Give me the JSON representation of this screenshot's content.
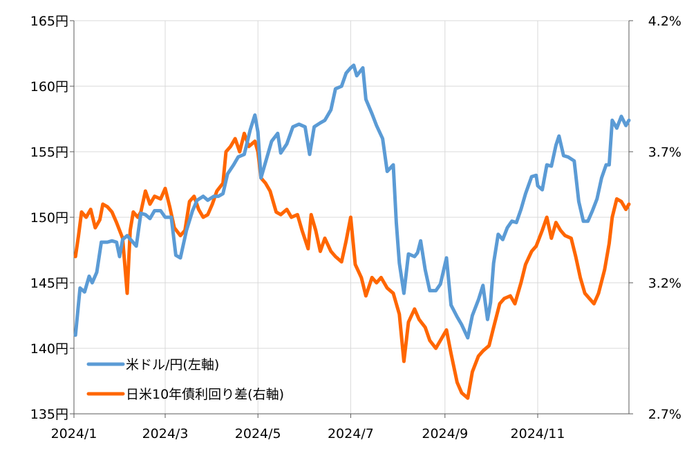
{
  "chart_data": {
    "type": "line",
    "title": "",
    "left_axis": {
      "ylim": [
        135,
        165
      ],
      "ticks": [
        165,
        160,
        155,
        150,
        145,
        140,
        135
      ],
      "tick_labels": [
        "165円",
        "160円",
        "155円",
        "150円",
        "145円",
        "140円",
        "135円"
      ]
    },
    "right_axis": {
      "ylim": [
        2.7,
        4.2
      ],
      "ticks": [
        4.2,
        3.7,
        3.2,
        2.7
      ],
      "tick_labels": [
        "4.2%",
        "3.7%",
        "3.2%",
        "2.7%"
      ]
    },
    "x_axis": {
      "start": "2024-01-01",
      "end": "2024-12-31",
      "ticks": [
        "2024-01-01",
        "2024-03-01",
        "2024-05-01",
        "2024-07-01",
        "2024-09-01",
        "2024-11-01"
      ],
      "tick_labels": [
        "2024/1",
        "2024/3",
        "2024/5",
        "2024/7",
        "2024/9",
        "2024/11"
      ]
    },
    "grid": {
      "vertical": true,
      "horizontal": true
    },
    "legend_position": "bottom-left",
    "colors": {
      "usdjpy": "#5B9BD5",
      "spread": "#FF6600"
    },
    "series": [
      {
        "name": "米ドル/円(左軸)",
        "axis": "left",
        "points": [
          [
            "2024-01-02",
            141.0
          ],
          [
            "2024-01-05",
            144.6
          ],
          [
            "2024-01-08",
            144.3
          ],
          [
            "2024-01-11",
            145.5
          ],
          [
            "2024-01-13",
            145.0
          ],
          [
            "2024-01-16",
            145.8
          ],
          [
            "2024-01-19",
            148.1
          ],
          [
            "2024-01-23",
            148.1
          ],
          [
            "2024-01-26",
            148.2
          ],
          [
            "2024-01-29",
            148.1
          ],
          [
            "2024-01-31",
            147.0
          ],
          [
            "2024-02-02",
            148.3
          ],
          [
            "2024-02-05",
            148.6
          ],
          [
            "2024-02-08",
            148.2
          ],
          [
            "2024-02-11",
            147.8
          ],
          [
            "2024-02-14",
            150.3
          ],
          [
            "2024-02-17",
            150.2
          ],
          [
            "2024-02-20",
            149.9
          ],
          [
            "2024-02-23",
            150.5
          ],
          [
            "2024-02-27",
            150.5
          ],
          [
            "2024-03-01",
            150.0
          ],
          [
            "2024-03-05",
            150.0
          ],
          [
            "2024-03-08",
            147.1
          ],
          [
            "2024-03-11",
            146.9
          ],
          [
            "2024-03-15",
            149.0
          ],
          [
            "2024-03-19",
            150.5
          ],
          [
            "2024-03-22",
            151.3
          ],
          [
            "2024-03-26",
            151.6
          ],
          [
            "2024-03-29",
            151.3
          ],
          [
            "2024-04-02",
            151.6
          ],
          [
            "2024-04-05",
            151.6
          ],
          [
            "2024-04-08",
            151.8
          ],
          [
            "2024-04-11",
            153.3
          ],
          [
            "2024-04-15",
            154.0
          ],
          [
            "2024-04-18",
            154.6
          ],
          [
            "2024-04-22",
            154.8
          ],
          [
            "2024-04-26",
            156.7
          ],
          [
            "2024-04-29",
            157.8
          ],
          [
            "2024-05-01",
            156.5
          ],
          [
            "2024-05-03",
            153.0
          ],
          [
            "2024-05-07",
            154.6
          ],
          [
            "2024-05-10",
            155.8
          ],
          [
            "2024-05-14",
            156.4
          ],
          [
            "2024-05-16",
            154.9
          ],
          [
            "2024-05-20",
            155.6
          ],
          [
            "2024-05-24",
            156.9
          ],
          [
            "2024-05-28",
            157.1
          ],
          [
            "2024-06-01",
            156.9
          ],
          [
            "2024-06-04",
            154.8
          ],
          [
            "2024-06-07",
            156.9
          ],
          [
            "2024-06-11",
            157.2
          ],
          [
            "2024-06-14",
            157.4
          ],
          [
            "2024-06-18",
            158.2
          ],
          [
            "2024-06-21",
            159.8
          ],
          [
            "2024-06-25",
            160.0
          ],
          [
            "2024-06-28",
            161.0
          ],
          [
            "2024-07-01",
            161.4
          ],
          [
            "2024-07-03",
            161.6
          ],
          [
            "2024-07-05",
            160.8
          ],
          [
            "2024-07-09",
            161.4
          ],
          [
            "2024-07-11",
            159.0
          ],
          [
            "2024-07-15",
            157.9
          ],
          [
            "2024-07-18",
            157.0
          ],
          [
            "2024-07-22",
            156.0
          ],
          [
            "2024-07-25",
            153.5
          ],
          [
            "2024-07-29",
            154.0
          ],
          [
            "2024-07-31",
            149.6
          ],
          [
            "2024-08-02",
            146.5
          ],
          [
            "2024-08-05",
            144.2
          ],
          [
            "2024-08-08",
            147.2
          ],
          [
            "2024-08-12",
            147.0
          ],
          [
            "2024-08-14",
            147.3
          ],
          [
            "2024-08-16",
            148.2
          ],
          [
            "2024-08-19",
            146.0
          ],
          [
            "2024-08-22",
            144.4
          ],
          [
            "2024-08-26",
            144.4
          ],
          [
            "2024-08-29",
            144.9
          ],
          [
            "2024-09-02",
            146.9
          ],
          [
            "2024-09-05",
            143.3
          ],
          [
            "2024-09-09",
            142.4
          ],
          [
            "2024-09-12",
            141.8
          ],
          [
            "2024-09-16",
            140.8
          ],
          [
            "2024-09-19",
            142.5
          ],
          [
            "2024-09-23",
            143.7
          ],
          [
            "2024-09-26",
            144.8
          ],
          [
            "2024-09-29",
            142.2
          ],
          [
            "2024-10-01",
            143.5
          ],
          [
            "2024-10-03",
            146.5
          ],
          [
            "2024-10-06",
            148.7
          ],
          [
            "2024-10-09",
            148.3
          ],
          [
            "2024-10-12",
            149.2
          ],
          [
            "2024-10-15",
            149.7
          ],
          [
            "2024-10-18",
            149.6
          ],
          [
            "2024-10-21",
            150.6
          ],
          [
            "2024-10-24",
            151.8
          ],
          [
            "2024-10-28",
            153.1
          ],
          [
            "2024-10-31",
            153.2
          ],
          [
            "2024-11-01",
            152.4
          ],
          [
            "2024-11-04",
            152.1
          ],
          [
            "2024-11-07",
            154.0
          ],
          [
            "2024-11-10",
            153.9
          ],
          [
            "2024-11-13",
            155.5
          ],
          [
            "2024-11-15",
            156.2
          ],
          [
            "2024-11-18",
            154.7
          ],
          [
            "2024-11-21",
            154.6
          ],
          [
            "2024-11-25",
            154.3
          ],
          [
            "2024-11-28",
            151.2
          ],
          [
            "2024-12-01",
            149.7
          ],
          [
            "2024-12-04",
            149.7
          ],
          [
            "2024-12-07",
            150.5
          ],
          [
            "2024-12-10",
            151.4
          ],
          [
            "2024-12-13",
            153.0
          ],
          [
            "2024-12-16",
            154.0
          ],
          [
            "2024-12-18",
            154.0
          ],
          [
            "2024-12-20",
            157.4
          ],
          [
            "2024-12-23",
            156.8
          ],
          [
            "2024-12-26",
            157.7
          ],
          [
            "2024-12-29",
            157.0
          ],
          [
            "2024-12-31",
            157.4
          ]
        ]
      },
      {
        "name": "日米10年債利回り差(右軸)",
        "axis": "right",
        "points": [
          [
            "2024-01-02",
            3.3
          ],
          [
            "2024-01-04",
            3.38
          ],
          [
            "2024-01-06",
            3.47
          ],
          [
            "2024-01-09",
            3.45
          ],
          [
            "2024-01-12",
            3.48
          ],
          [
            "2024-01-15",
            3.41
          ],
          [
            "2024-01-18",
            3.44
          ],
          [
            "2024-01-20",
            3.5
          ],
          [
            "2024-01-23",
            3.49
          ],
          [
            "2024-01-26",
            3.47
          ],
          [
            "2024-01-29",
            3.43
          ],
          [
            "2024-01-31",
            3.4
          ],
          [
            "2024-02-02",
            3.37
          ],
          [
            "2024-02-05",
            3.16
          ],
          [
            "2024-02-07",
            3.4
          ],
          [
            "2024-02-09",
            3.47
          ],
          [
            "2024-02-12",
            3.45
          ],
          [
            "2024-02-14",
            3.47
          ],
          [
            "2024-02-17",
            3.55
          ],
          [
            "2024-02-20",
            3.5
          ],
          [
            "2024-02-23",
            3.53
          ],
          [
            "2024-02-27",
            3.52
          ],
          [
            "2024-03-01",
            3.56
          ],
          [
            "2024-03-04",
            3.49
          ],
          [
            "2024-03-07",
            3.41
          ],
          [
            "2024-03-11",
            3.38
          ],
          [
            "2024-03-14",
            3.4
          ],
          [
            "2024-03-17",
            3.51
          ],
          [
            "2024-03-20",
            3.53
          ],
          [
            "2024-03-23",
            3.48
          ],
          [
            "2024-03-26",
            3.45
          ],
          [
            "2024-03-29",
            3.46
          ],
          [
            "2024-04-01",
            3.5
          ],
          [
            "2024-04-04",
            3.55
          ],
          [
            "2024-04-08",
            3.58
          ],
          [
            "2024-04-10",
            3.7
          ],
          [
            "2024-04-13",
            3.72
          ],
          [
            "2024-04-16",
            3.75
          ],
          [
            "2024-04-19",
            3.7
          ],
          [
            "2024-04-22",
            3.77
          ],
          [
            "2024-04-25",
            3.72
          ],
          [
            "2024-04-29",
            3.74
          ],
          [
            "2024-05-01",
            3.7
          ],
          [
            "2024-05-03",
            3.6
          ],
          [
            "2024-05-06",
            3.58
          ],
          [
            "2024-05-09",
            3.55
          ],
          [
            "2024-05-13",
            3.47
          ],
          [
            "2024-05-16",
            3.46
          ],
          [
            "2024-05-20",
            3.48
          ],
          [
            "2024-05-23",
            3.45
          ],
          [
            "2024-05-27",
            3.46
          ],
          [
            "2024-05-30",
            3.4
          ],
          [
            "2024-06-03",
            3.33
          ],
          [
            "2024-06-05",
            3.46
          ],
          [
            "2024-06-08",
            3.4
          ],
          [
            "2024-06-11",
            3.32
          ],
          [
            "2024-06-14",
            3.37
          ],
          [
            "2024-06-18",
            3.32
          ],
          [
            "2024-06-21",
            3.3
          ],
          [
            "2024-06-25",
            3.28
          ],
          [
            "2024-06-28",
            3.36
          ],
          [
            "2024-07-01",
            3.45
          ],
          [
            "2024-07-04",
            3.27
          ],
          [
            "2024-07-08",
            3.22
          ],
          [
            "2024-07-11",
            3.15
          ],
          [
            "2024-07-15",
            3.22
          ],
          [
            "2024-07-18",
            3.2
          ],
          [
            "2024-07-21",
            3.22
          ],
          [
            "2024-07-25",
            3.18
          ],
          [
            "2024-07-29",
            3.16
          ],
          [
            "2024-08-02",
            3.08
          ],
          [
            "2024-08-05",
            2.9
          ],
          [
            "2024-08-08",
            3.05
          ],
          [
            "2024-08-12",
            3.1
          ],
          [
            "2024-08-15",
            3.06
          ],
          [
            "2024-08-19",
            3.03
          ],
          [
            "2024-08-22",
            2.98
          ],
          [
            "2024-08-26",
            2.95
          ],
          [
            "2024-08-29",
            2.98
          ],
          [
            "2024-09-02",
            3.02
          ],
          [
            "2024-09-05",
            2.93
          ],
          [
            "2024-09-09",
            2.82
          ],
          [
            "2024-09-12",
            2.78
          ],
          [
            "2024-09-16",
            2.76
          ],
          [
            "2024-09-19",
            2.86
          ],
          [
            "2024-09-23",
            2.92
          ],
          [
            "2024-09-26",
            2.94
          ],
          [
            "2024-09-30",
            2.96
          ],
          [
            "2024-10-03",
            3.03
          ],
          [
            "2024-10-07",
            3.12
          ],
          [
            "2024-10-10",
            3.14
          ],
          [
            "2024-10-14",
            3.15
          ],
          [
            "2024-10-17",
            3.12
          ],
          [
            "2024-10-21",
            3.2
          ],
          [
            "2024-10-24",
            3.27
          ],
          [
            "2024-10-28",
            3.32
          ],
          [
            "2024-10-31",
            3.34
          ],
          [
            "2024-11-04",
            3.4
          ],
          [
            "2024-11-07",
            3.45
          ],
          [
            "2024-11-10",
            3.37
          ],
          [
            "2024-11-13",
            3.43
          ],
          [
            "2024-11-16",
            3.4
          ],
          [
            "2024-11-19",
            3.38
          ],
          [
            "2024-11-23",
            3.37
          ],
          [
            "2024-11-26",
            3.3
          ],
          [
            "2024-11-29",
            3.22
          ],
          [
            "2024-12-02",
            3.16
          ],
          [
            "2024-12-05",
            3.14
          ],
          [
            "2024-12-08",
            3.12
          ],
          [
            "2024-12-11",
            3.16
          ],
          [
            "2024-12-15",
            3.25
          ],
          [
            "2024-12-18",
            3.35
          ],
          [
            "2024-12-20",
            3.45
          ],
          [
            "2024-12-23",
            3.52
          ],
          [
            "2024-12-26",
            3.51
          ],
          [
            "2024-12-29",
            3.48
          ],
          [
            "2024-12-31",
            3.5
          ]
        ]
      }
    ]
  }
}
